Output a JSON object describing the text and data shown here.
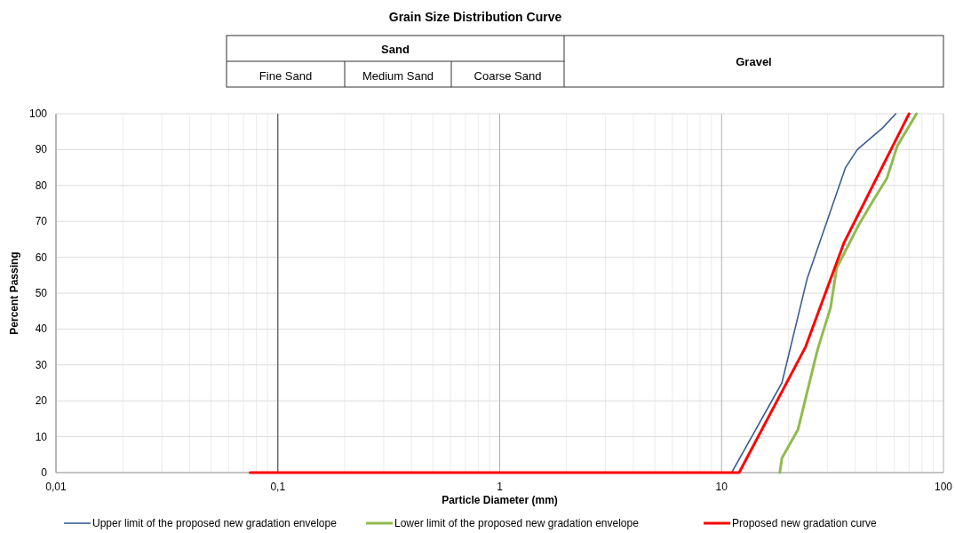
{
  "chart_data": {
    "type": "line",
    "title": "Grain Size Distribution Curve",
    "xlabel": "Particle Diameter (mm)",
    "ylabel": "Percent Passing",
    "annotations": [
      "Sand",
      "Fine Sand",
      "Medium Sand",
      "Coarse Sand",
      "Gravel"
    ],
    "log": "x",
    "xlim": [
      0.01,
      100
    ],
    "xticks": [
      {
        "value": 0.01,
        "label": "0,01"
      },
      {
        "value": 0.1,
        "label": "0,1"
      },
      1,
      10,
      100
    ],
    "ylim": [
      0,
      100
    ],
    "yticks": [
      0,
      10,
      20,
      30,
      40,
      50,
      60,
      70,
      80,
      90,
      100
    ],
    "grid": true,
    "legend": "bottom",
    "ref_lines": [
      {
        "axis": "x",
        "value": 0.1,
        "color": "#444444"
      }
    ],
    "marker": "none",
    "line_style": "solid",
    "series": [
      {
        "name": "Upper limit of the proposed new gradation envelope",
        "color": "#3a5f8f",
        "x": [
          11.1,
          18.7,
          24.3,
          36.2,
          40.9,
          53.1,
          61
        ],
        "values": [
          0,
          25,
          54,
          85,
          90,
          96,
          100
        ]
      },
      {
        "name": "Lower limit of the proposed new gradation envelope",
        "color": "#8fbc4f",
        "x": [
          18.3,
          18.7,
          22.1,
          27.0,
          31.0,
          33.0,
          41.5,
          48.4,
          55.6,
          61.9,
          75.6
        ],
        "values": [
          0,
          4,
          12,
          34,
          46,
          57,
          69,
          76,
          82,
          91,
          100
        ]
      },
      {
        "name": "Proposed new gradation curve",
        "color": "#ff0000",
        "x": [
          0.075,
          12.0,
          23.9,
          35.6,
          70
        ],
        "values": [
          0,
          0,
          35,
          64,
          100
        ]
      }
    ]
  }
}
